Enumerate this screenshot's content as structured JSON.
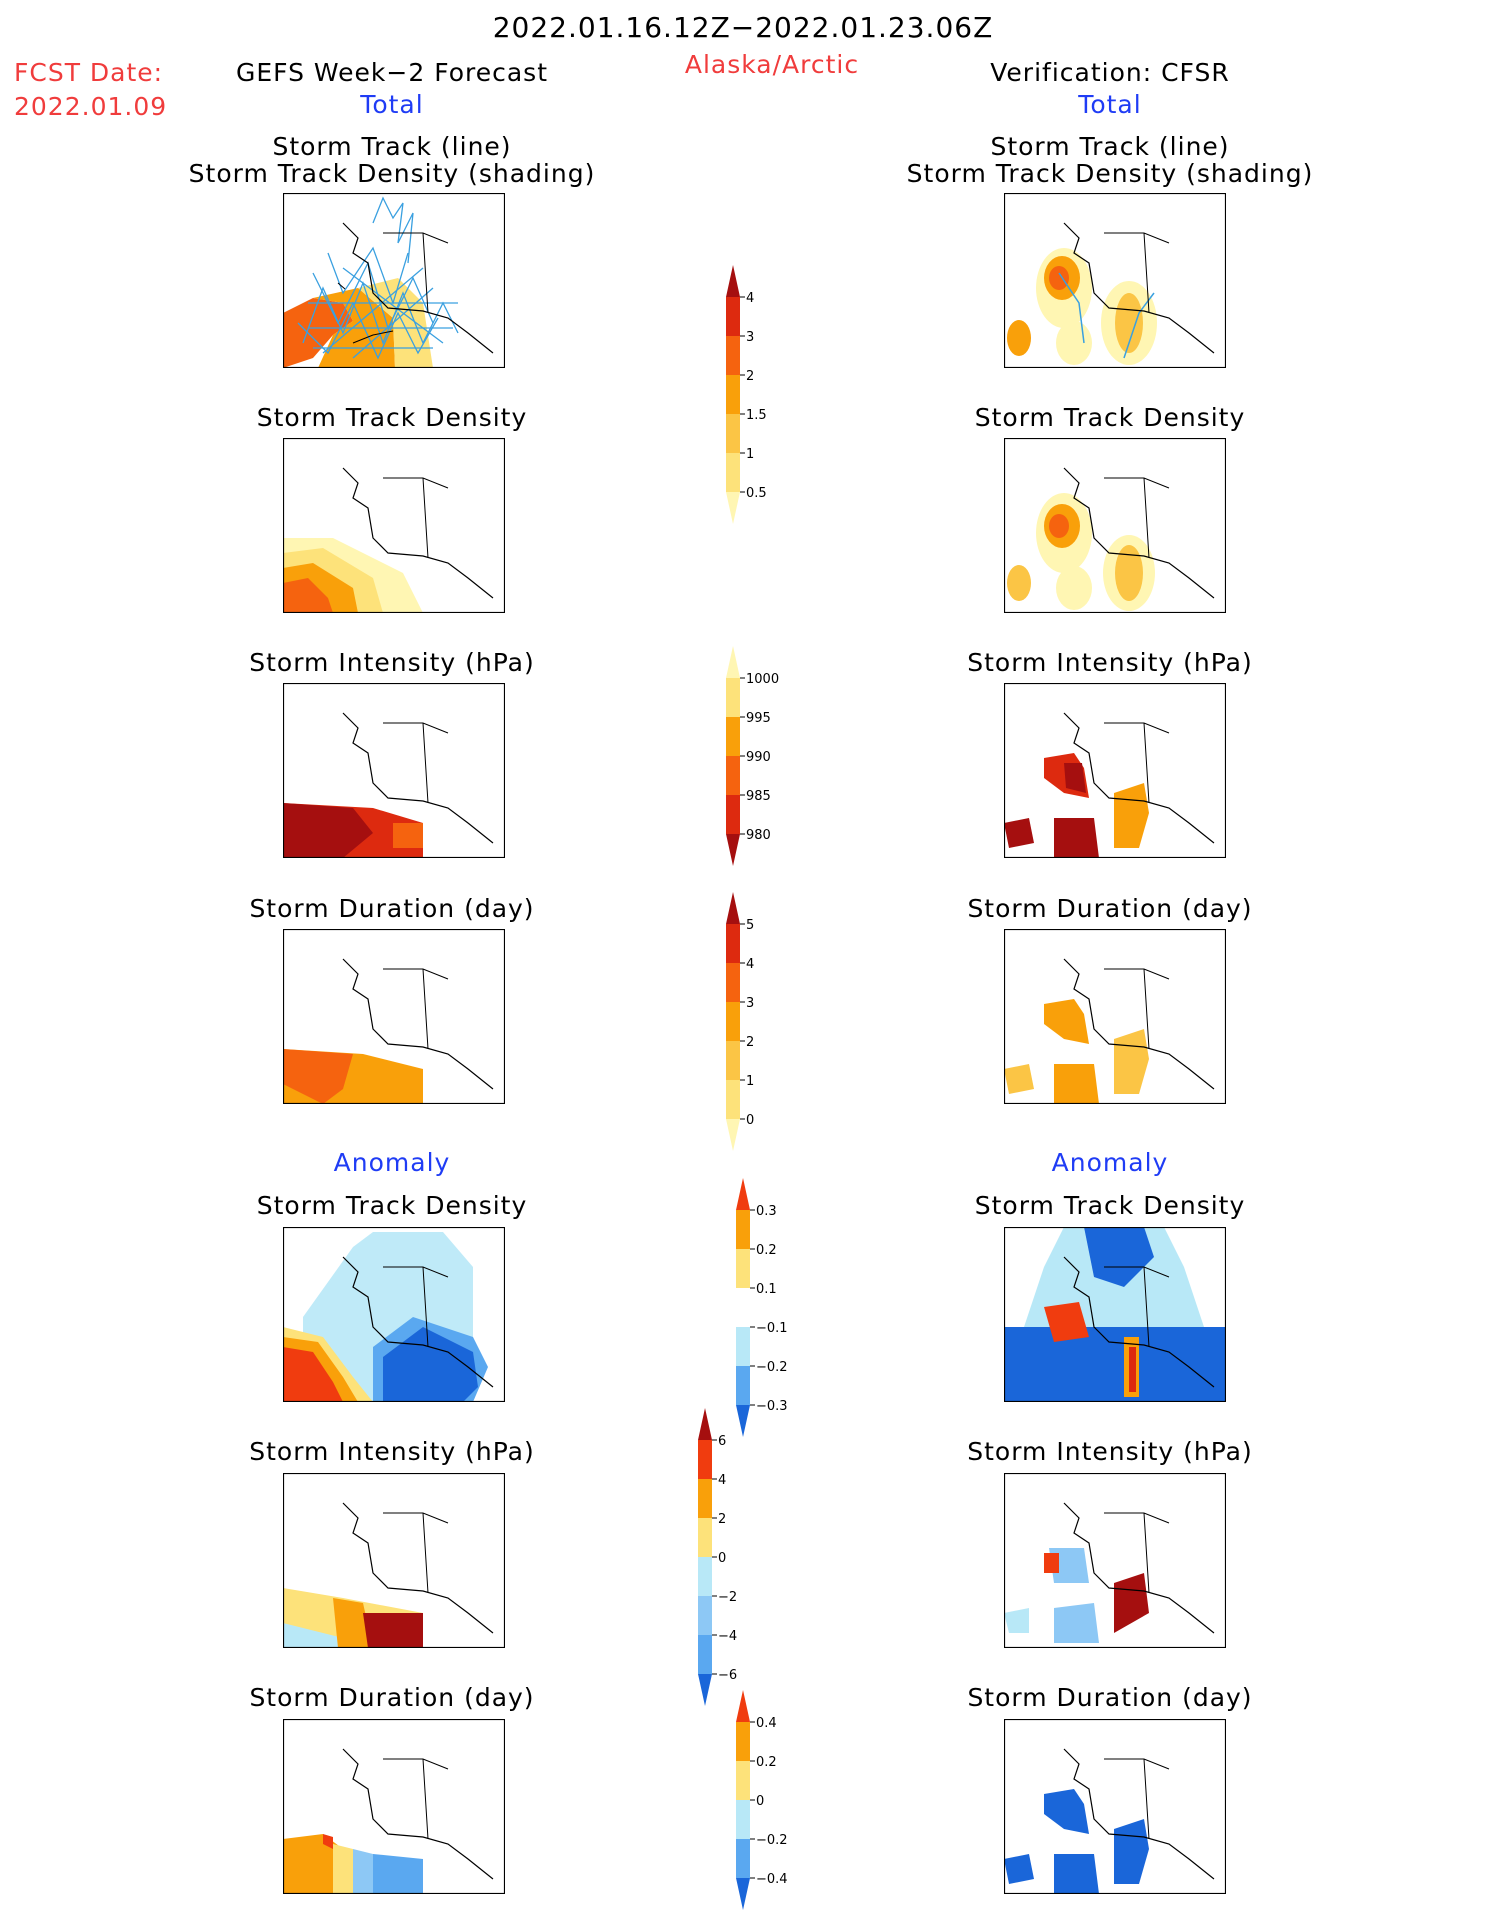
{
  "header": {
    "period": "2022.01.16.12Z−2022.01.23.06Z",
    "fcst_label": "FCST Date:",
    "fcst_date": "2022.01.09",
    "left_title": "GEFS Week−2 Forecast",
    "region": "Alaska/Arctic",
    "right_title": "Verification: CFSR",
    "left_section": "Total",
    "right_section": "Total",
    "anomaly_left": "Anomaly",
    "anomaly_right": "Anomaly"
  },
  "panels": {
    "track": {
      "line1": "Storm Track (line)",
      "line2": "Storm Track Density (shading)"
    },
    "density": "Storm Track Density",
    "intensity": "Storm Intensity (hPa)",
    "duration": "Storm Duration (day)"
  },
  "colorbars": {
    "density": {
      "ticks": [
        "4",
        "3",
        "2",
        "1.5",
        "1",
        "0.5"
      ],
      "colors": [
        "#a50f0f",
        "#dd2a0f",
        "#f5630f",
        "#f9a00a",
        "#fbc545",
        "#fde27a",
        "#fff6b3"
      ]
    },
    "intensity": {
      "ticks": [
        "1000",
        "995",
        "990",
        "985",
        "980"
      ],
      "colors": [
        "#fff6b3",
        "#fde27a",
        "#f9a00a",
        "#f5630f",
        "#dd2a0f",
        "#a50f0f"
      ]
    },
    "duration": {
      "ticks": [
        "5",
        "4",
        "3",
        "2",
        "1",
        "0"
      ],
      "colors": [
        "#a50f0f",
        "#dd2a0f",
        "#f5630f",
        "#f9a00a",
        "#fbc545",
        "#fde27a",
        "#fff6b3"
      ]
    },
    "anom_density": {
      "ticks": [
        "0.3",
        "0.2",
        "0.1",
        "−0.1",
        "−0.2",
        "−0.3"
      ],
      "colors": [
        "#f03c0f",
        "#f9a00a",
        "#fde27a",
        "#ffffff",
        "#b8e8f7",
        "#5aa8f0",
        "#1a66d9"
      ]
    },
    "anom_intensity": {
      "ticks": [
        "6",
        "4",
        "2",
        "0",
        "−2",
        "−4",
        "−6"
      ],
      "colors": [
        "#a50f0f",
        "#f03c0f",
        "#f9a00a",
        "#fde27a",
        "#b8e8f7",
        "#8dc8f5",
        "#5aa8f0",
        "#1a66d9"
      ]
    },
    "anom_duration": {
      "ticks": [
        "0.4",
        "0.2",
        "0",
        "−0.2",
        "−0.4"
      ],
      "colors": [
        "#f03c0f",
        "#f9a00a",
        "#fde27a",
        "#b8e8f7",
        "#5aa8f0",
        "#1a66d9"
      ]
    }
  }
}
